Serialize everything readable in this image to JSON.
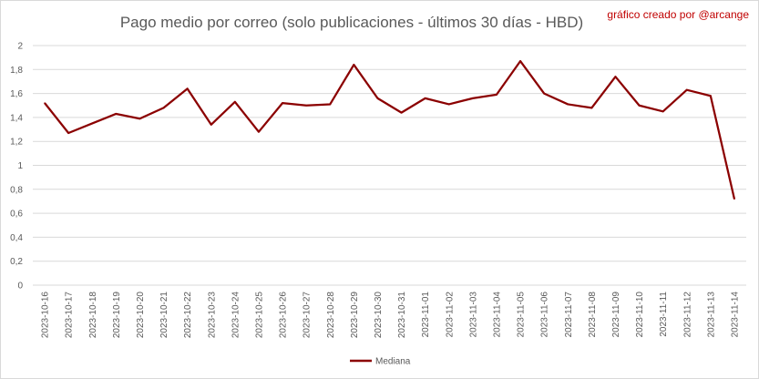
{
  "chart_data": {
    "type": "line",
    "title": "Pago medio por correo (solo publicaciones - últimos 30 días - HBD)",
    "annotation": "gráfico creado por @arcange",
    "xlabel": "",
    "ylabel": "",
    "ylim": [
      0,
      2
    ],
    "yticks": [
      "0",
      "0,2",
      "0,4",
      "0,6",
      "0,8",
      "1",
      "1,2",
      "1,4",
      "1,6",
      "1,8",
      "2"
    ],
    "grid": true,
    "legend_position": "bottom",
    "x": [
      "2023-10-16",
      "2023-10-17",
      "2023-10-18",
      "2023-10-19",
      "2023-10-20",
      "2023-10-21",
      "2023-10-22",
      "2023-10-23",
      "2023-10-24",
      "2023-10-25",
      "2023-10-26",
      "2023-10-27",
      "2023-10-28",
      "2023-10-29",
      "2023-10-30",
      "2023-10-31",
      "2023-11-01",
      "2023-11-02",
      "2023-11-03",
      "2023-11-04",
      "2023-11-05",
      "2023-11-06",
      "2023-11-07",
      "2023-11-08",
      "2023-11-09",
      "2023-11-10",
      "2023-11-11",
      "2023-11-12",
      "2023-11-13",
      "2023-11-14"
    ],
    "series": [
      {
        "name": "Mediana",
        "color": "#8b0000",
        "values": [
          1.52,
          1.27,
          1.35,
          1.43,
          1.39,
          1.48,
          1.64,
          1.34,
          1.53,
          1.28,
          1.52,
          1.5,
          1.51,
          1.84,
          1.56,
          1.44,
          1.56,
          1.51,
          1.56,
          1.59,
          1.87,
          1.6,
          1.51,
          1.48,
          1.74,
          1.5,
          1.45,
          1.63,
          1.58,
          0.72
        ]
      }
    ]
  }
}
